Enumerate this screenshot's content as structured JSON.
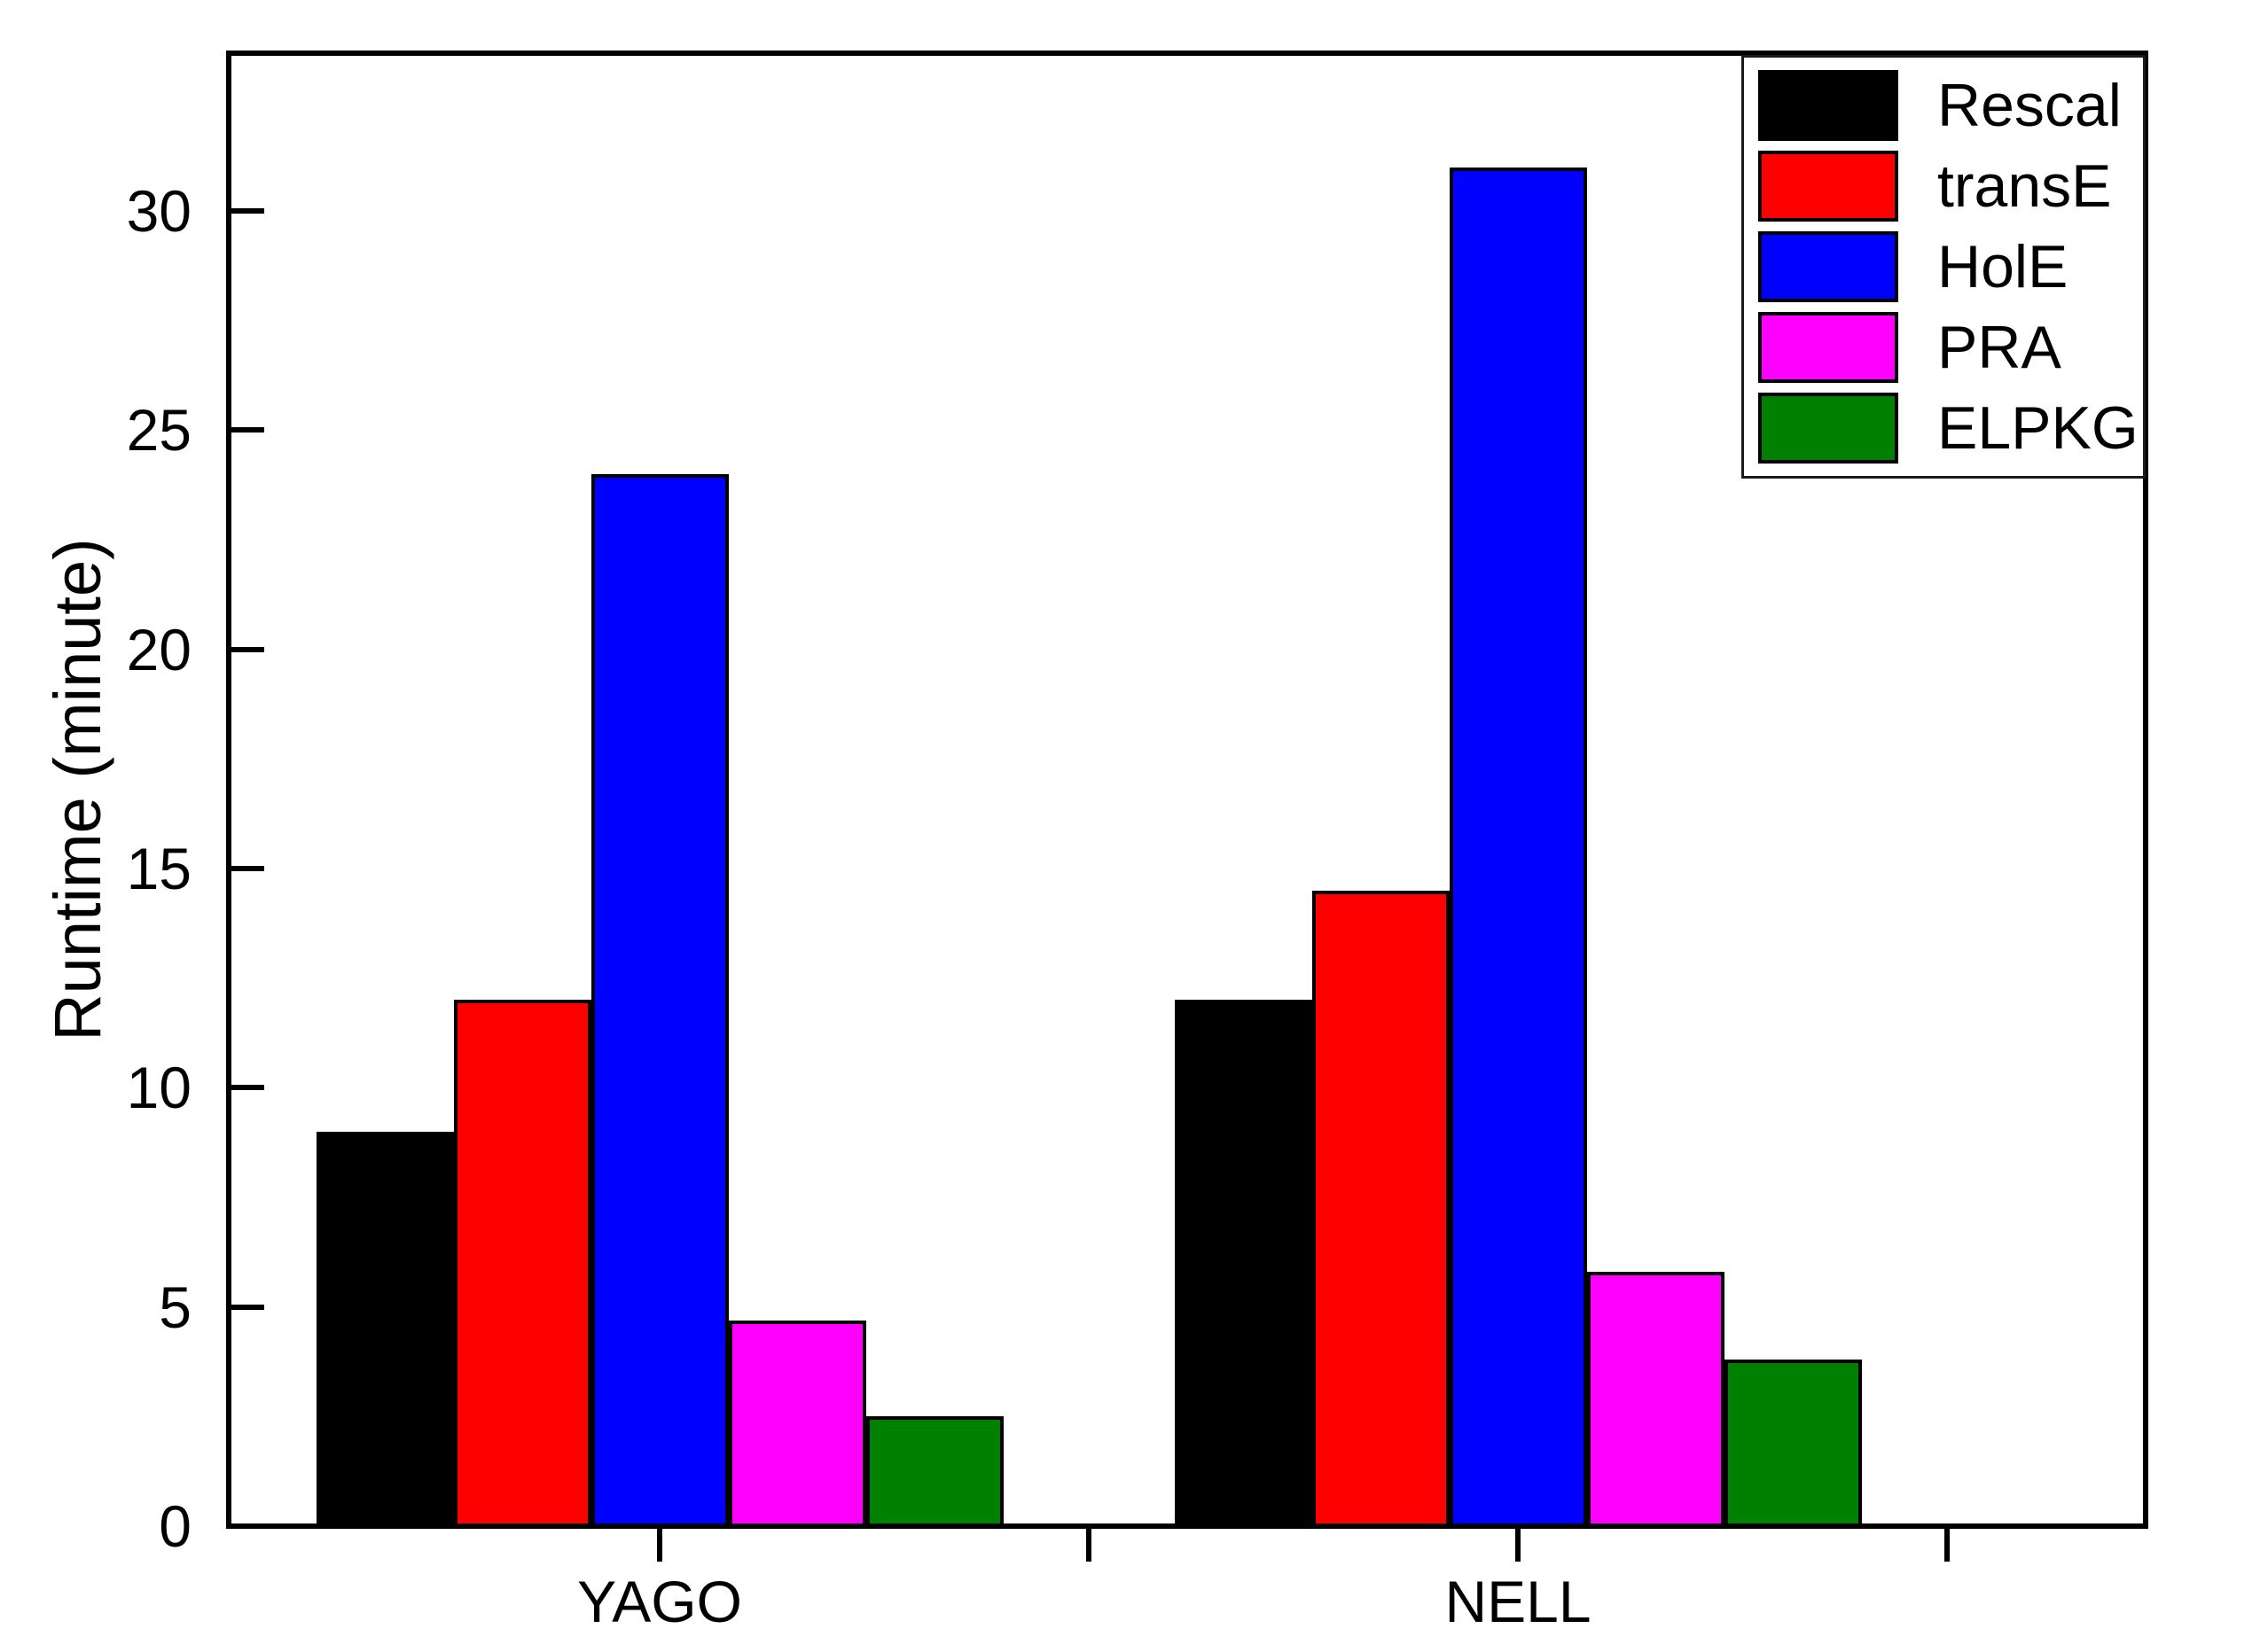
{
  "chart_data": {
    "type": "bar",
    "title": "",
    "xlabel": "",
    "ylabel": "Runtime (minute)",
    "categories": [
      "YAGO",
      "NELL"
    ],
    "series": [
      {
        "name": "Rescal",
        "color": "#000000",
        "values": [
          9,
          12
        ]
      },
      {
        "name": "transE",
        "color": "#ff0000",
        "values": [
          12,
          14.5
        ]
      },
      {
        "name": "HolE",
        "color": "#0000ff",
        "values": [
          24,
          31
        ]
      },
      {
        "name": "PRA",
        "color": "#ff00ff",
        "values": [
          4.7,
          5.8
        ]
      },
      {
        "name": "ELPKG",
        "color": "#008000",
        "values": [
          2.5,
          3.8
        ]
      }
    ],
    "yticks": [
      0,
      5,
      10,
      15,
      20,
      25,
      30
    ],
    "ylim": [
      0,
      33.6
    ],
    "grid": false,
    "legend_position": "top-right",
    "bar_outline_color": "#000000",
    "axis_color": "#000000",
    "background_color": "#ffffff"
  }
}
